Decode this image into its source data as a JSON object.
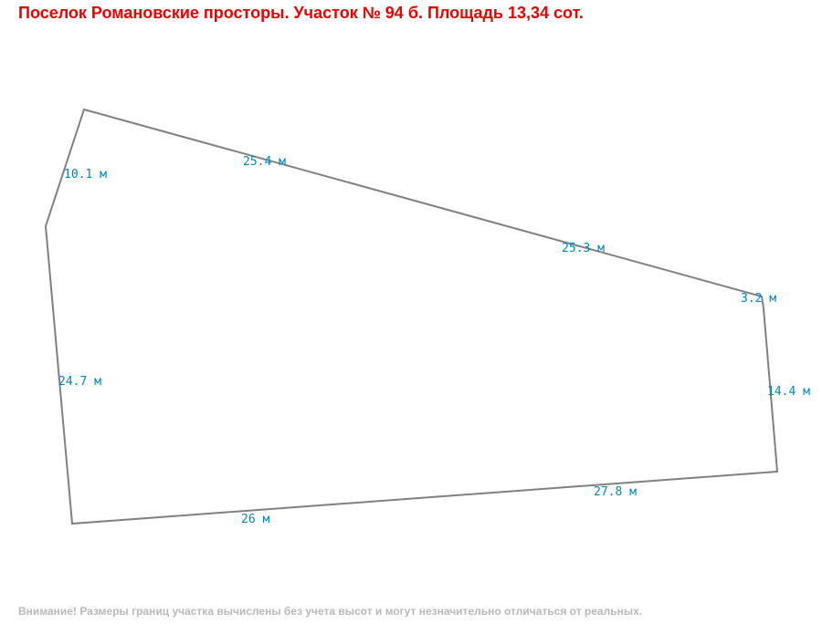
{
  "title": "Поселок Романовские просторы. Участок № 94 б. Площадь 13,34 сот.",
  "footnote": "Внимание! Размеры границ участка вычислены без учета высот и могут незначительно отличаться от реальных.",
  "colors": {
    "title": "#ee0000",
    "boundary": "#808080",
    "dimension_label": "#0088bb",
    "footnote": "#b8b8b8"
  },
  "plot": {
    "edges": [
      {
        "id": "edge-1",
        "label": "10.1 м"
      },
      {
        "id": "edge-2",
        "label": "25.4 м"
      },
      {
        "id": "edge-3",
        "label": "25.3 м"
      },
      {
        "id": "edge-4",
        "label": "3.2 м"
      },
      {
        "id": "edge-5",
        "label": "14.4 м"
      },
      {
        "id": "edge-6",
        "label": "27.8 м"
      },
      {
        "id": "edge-7",
        "label": "26 м"
      },
      {
        "id": "edge-8",
        "label": "24.7 м"
      }
    ]
  }
}
